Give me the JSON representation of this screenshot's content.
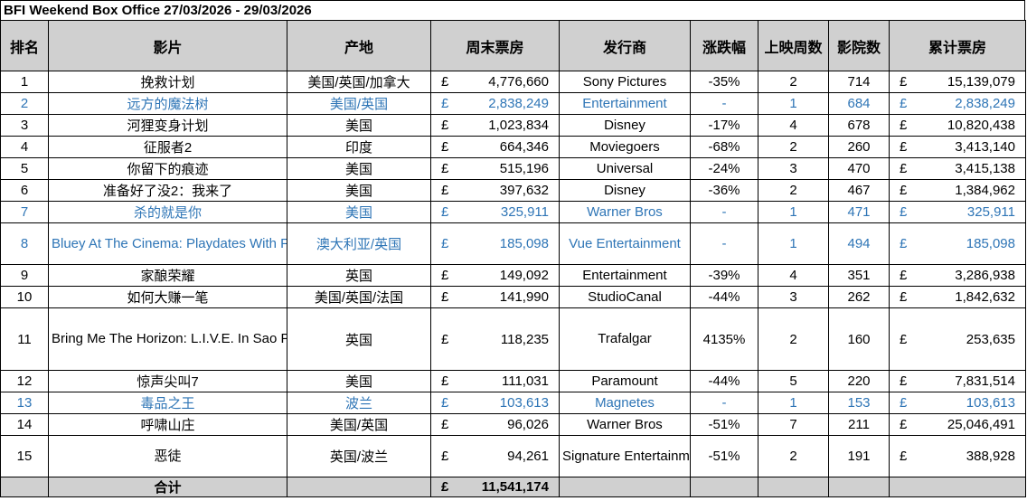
{
  "title": "BFI Weekend Box Office 27/03/2026 - 29/03/2026",
  "headers": [
    "排名",
    "影片",
    "产地",
    "周末票房",
    "发行商",
    "涨跌幅",
    "上映周数",
    "影院数",
    "累计票房"
  ],
  "currency": "£",
  "rows": [
    {
      "rank": "1",
      "film": "挽救计划",
      "origin": "美国/英国/加拿大",
      "weekend": "4,776,660",
      "distributor": "Sony Pictures",
      "change": "-35%",
      "weeks": "2",
      "cinemas": "714",
      "total": "15,139,079",
      "new": false,
      "lines": 1
    },
    {
      "rank": "2",
      "film": "远方的魔法树",
      "origin": "美国/英国",
      "weekend": "2,838,249",
      "distributor": "Entertainment",
      "change": "-",
      "weeks": "1",
      "cinemas": "684",
      "total": "2,838,249",
      "new": true,
      "lines": 1
    },
    {
      "rank": "3",
      "film": "河狸变身计划",
      "origin": "美国",
      "weekend": "1,023,834",
      "distributor": "Disney",
      "change": "-17%",
      "weeks": "4",
      "cinemas": "678",
      "total": "10,820,438",
      "new": false,
      "lines": 1
    },
    {
      "rank": "4",
      "film": "征服者2",
      "origin": "印度",
      "weekend": "664,346",
      "distributor": "Moviegoers",
      "change": "-68%",
      "weeks": "2",
      "cinemas": "260",
      "total": "3,413,140",
      "new": false,
      "lines": 1
    },
    {
      "rank": "5",
      "film": "你留下的痕迹",
      "origin": "美国",
      "weekend": "515,196",
      "distributor": "Universal",
      "change": "-24%",
      "weeks": "3",
      "cinemas": "470",
      "total": "3,415,138",
      "new": false,
      "lines": 1
    },
    {
      "rank": "6",
      "film": "准备好了没2：我来了",
      "origin": "美国",
      "weekend": "397,632",
      "distributor": "Disney",
      "change": "-36%",
      "weeks": "2",
      "cinemas": "467",
      "total": "1,384,962",
      "new": false,
      "lines": 1
    },
    {
      "rank": "7",
      "film": "杀的就是你",
      "origin": "美国",
      "weekend": "325,911",
      "distributor": "Warner Bros",
      "change": "-",
      "weeks": "1",
      "cinemas": "471",
      "total": "325,911",
      "new": true,
      "lines": 1
    },
    {
      "rank": "8",
      "film": "Bluey At The Cinema: Playdates With Friends",
      "origin": "澳大利亚/英国",
      "weekend": "185,098",
      "distributor": "Vue Entertainment",
      "change": "-",
      "weeks": "1",
      "cinemas": "494",
      "total": "185,098",
      "new": true,
      "lines": 2
    },
    {
      "rank": "9",
      "film": "家酿荣耀",
      "origin": "英国",
      "weekend": "149,092",
      "distributor": "Entertainment",
      "change": "-39%",
      "weeks": "4",
      "cinemas": "351",
      "total": "3,286,938",
      "new": false,
      "lines": 1
    },
    {
      "rank": "10",
      "film": "如何大赚一笔",
      "origin": "美国/英国/法国",
      "weekend": "141,990",
      "distributor": "StudioCanal",
      "change": "-44%",
      "weeks": "3",
      "cinemas": "262",
      "total": "1,842,632",
      "new": false,
      "lines": 1
    },
    {
      "rank": "11",
      "film": "Bring Me The Horizon: L.I.V.E. In Sao Paulo (Live Immersive Virtual Experiment)",
      "origin": "英国",
      "weekend": "118,235",
      "distributor": "Trafalgar",
      "change": "4135%",
      "weeks": "2",
      "cinemas": "160",
      "total": "253,635",
      "new": false,
      "lines": 3
    },
    {
      "rank": "12",
      "film": "惊声尖叫7",
      "origin": "美国",
      "weekend": "111,031",
      "distributor": "Paramount",
      "change": "-44%",
      "weeks": "5",
      "cinemas": "220",
      "total": "7,831,514",
      "new": false,
      "lines": 1
    },
    {
      "rank": "13",
      "film": "毒品之王",
      "origin": "波兰",
      "weekend": "103,613",
      "distributor": "Magnetes",
      "change": "-",
      "weeks": "1",
      "cinemas": "153",
      "total": "103,613",
      "new": true,
      "lines": 1
    },
    {
      "rank": "14",
      "film": "呼啸山庄",
      "origin": "美国/英国",
      "weekend": "96,026",
      "distributor": "Warner Bros",
      "change": "-51%",
      "weeks": "7",
      "cinemas": "211",
      "total": "25,046,491",
      "new": false,
      "lines": 1
    },
    {
      "rank": "15",
      "film": "恶徒",
      "origin": "英国/波兰",
      "weekend": "94,261",
      "distributor": "Signature Entertainment",
      "change": "-51%",
      "weeks": "2",
      "cinemas": "191",
      "total": "388,928",
      "new": false,
      "lines": 2
    }
  ],
  "total": {
    "label": "合计",
    "weekend": "11,541,174"
  },
  "colors": {
    "header_bg": "#d0d0d0",
    "new_release_text": "#2e75b6",
    "border": "#000000"
  }
}
